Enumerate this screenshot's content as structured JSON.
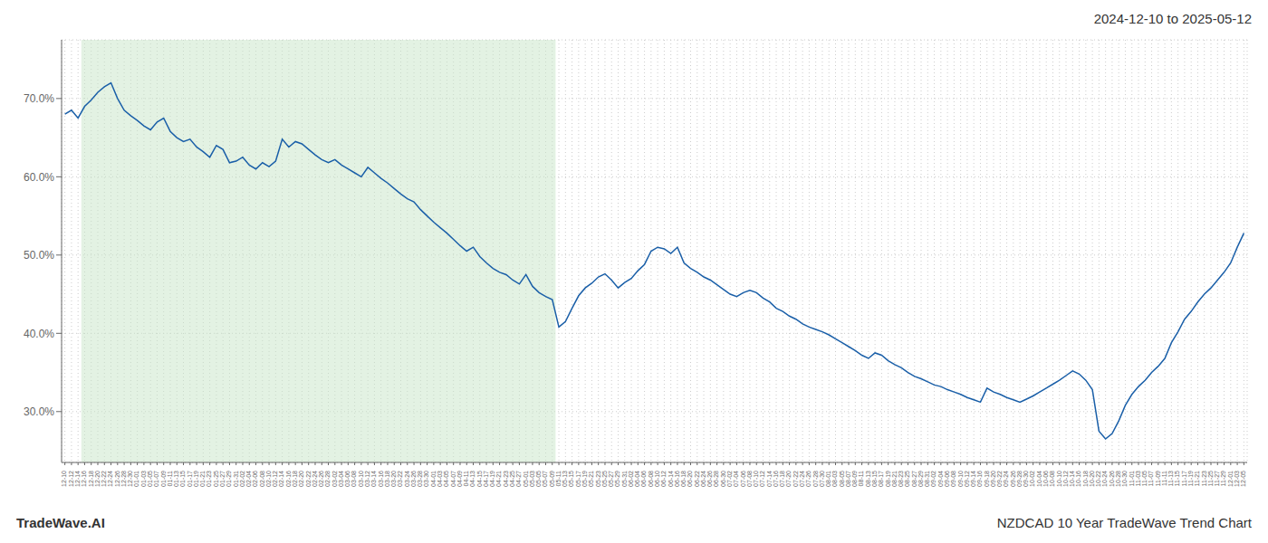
{
  "chart_data": {
    "type": "line",
    "title": "2024-12-10 to 2025-05-12",
    "annotations": [
      "TradeWave.AI",
      "NZDCAD 10 Year TradeWave Trend Chart"
    ],
    "categories": [
      "12-10",
      "12-12",
      "12-14",
      "12-16",
      "12-18",
      "12-20",
      "12-22",
      "12-24",
      "12-26",
      "12-28",
      "12-30",
      "01-01",
      "01-03",
      "01-05",
      "01-07",
      "01-09",
      "01-11",
      "01-13",
      "01-15",
      "01-17",
      "01-19",
      "01-21",
      "01-23",
      "01-25",
      "01-27",
      "01-29",
      "01-31",
      "02-02",
      "02-04",
      "02-06",
      "02-08",
      "02-10",
      "02-12",
      "02-14",
      "02-16",
      "02-18",
      "02-20",
      "02-22",
      "02-24",
      "02-26",
      "02-28",
      "03-02",
      "03-04",
      "03-06",
      "03-08",
      "03-10",
      "03-12",
      "03-14",
      "03-16",
      "03-18",
      "03-20",
      "03-22",
      "03-24",
      "03-26",
      "03-28",
      "03-30",
      "04-01",
      "04-03",
      "04-05",
      "04-07",
      "04-09",
      "04-11",
      "04-13",
      "04-15",
      "04-17",
      "04-19",
      "04-21",
      "04-23",
      "04-25",
      "04-27",
      "05-01",
      "05-03",
      "05-05",
      "05-07",
      "05-09",
      "05-11",
      "05-13",
      "05-15",
      "05-17",
      "05-19",
      "05-21",
      "05-23",
      "05-25",
      "05-27",
      "05-29",
      "05-31",
      "06-02",
      "06-04",
      "06-06",
      "06-08",
      "06-10",
      "06-12",
      "06-14",
      "06-16",
      "06-18",
      "06-20",
      "06-22",
      "06-24",
      "06-26",
      "06-28",
      "06-30",
      "07-02",
      "07-04",
      "07-06",
      "07-08",
      "07-10",
      "07-12",
      "07-14",
      "07-16",
      "07-18",
      "07-20",
      "07-22",
      "07-24",
      "07-26",
      "07-28",
      "07-30",
      "08-01",
      "08-03",
      "08-05",
      "08-07",
      "08-09",
      "08-11",
      "08-13",
      "08-15",
      "08-17",
      "08-19",
      "08-21",
      "08-23",
      "08-25",
      "08-27",
      "08-29",
      "08-31",
      "09-02",
      "09-04",
      "09-06",
      "09-08",
      "09-10",
      "09-12",
      "09-14",
      "09-16",
      "09-18",
      "09-20",
      "09-22",
      "09-24",
      "09-26",
      "09-28",
      "09-30",
      "10-02",
      "10-04",
      "10-06",
      "10-08",
      "10-10",
      "10-12",
      "10-14",
      "10-16",
      "10-18",
      "10-20",
      "10-22",
      "10-24",
      "10-26",
      "10-28",
      "10-30",
      "11-01",
      "11-03",
      "11-05",
      "11-07",
      "11-09",
      "11-11",
      "11-13",
      "11-15",
      "11-17",
      "11-19",
      "11-21",
      "11-23",
      "11-25",
      "11-27",
      "11-29",
      "12-01",
      "12-03",
      "12-05"
    ],
    "values": [
      0.68,
      0.685,
      0.675,
      0.69,
      0.698,
      0.708,
      0.715,
      0.72,
      0.7,
      0.685,
      0.678,
      0.672,
      0.665,
      0.66,
      0.67,
      0.675,
      0.658,
      0.65,
      0.645,
      0.648,
      0.638,
      0.632,
      0.625,
      0.64,
      0.635,
      0.618,
      0.62,
      0.625,
      0.615,
      0.61,
      0.618,
      0.613,
      0.62,
      0.648,
      0.638,
      0.645,
      0.642,
      0.635,
      0.628,
      0.622,
      0.618,
      0.622,
      0.615,
      0.61,
      0.605,
      0.6,
      0.612,
      0.605,
      0.598,
      0.592,
      0.585,
      0.578,
      0.572,
      0.568,
      0.558,
      0.55,
      0.542,
      0.535,
      0.528,
      0.52,
      0.512,
      0.505,
      0.51,
      0.498,
      0.49,
      0.483,
      0.478,
      0.475,
      0.468,
      0.463,
      0.475,
      0.46,
      0.452,
      0.447,
      0.443,
      0.408,
      0.415,
      0.432,
      0.448,
      0.458,
      0.464,
      0.472,
      0.476,
      0.468,
      0.458,
      0.465,
      0.47,
      0.48,
      0.488,
      0.505,
      0.51,
      0.508,
      0.502,
      0.51,
      0.49,
      0.483,
      0.478,
      0.472,
      0.468,
      0.462,
      0.456,
      0.45,
      0.447,
      0.452,
      0.455,
      0.452,
      0.445,
      0.44,
      0.432,
      0.428,
      0.422,
      0.418,
      0.412,
      0.408,
      0.405,
      0.402,
      0.398,
      0.393,
      0.388,
      0.383,
      0.378,
      0.372,
      0.368,
      0.375,
      0.372,
      0.365,
      0.36,
      0.356,
      0.35,
      0.345,
      0.342,
      0.338,
      0.334,
      0.332,
      0.328,
      0.325,
      0.322,
      0.318,
      0.315,
      0.312,
      0.33,
      0.325,
      0.322,
      0.318,
      0.315,
      0.312,
      0.316,
      0.32,
      0.325,
      0.33,
      0.335,
      0.34,
      0.346,
      0.352,
      0.348,
      0.34,
      0.328,
      0.275,
      0.265,
      0.272,
      0.288,
      0.308,
      0.322,
      0.332,
      0.34,
      0.35,
      0.358,
      0.368,
      0.388,
      0.402,
      0.418,
      0.428,
      0.44,
      0.45,
      0.458,
      0.468,
      0.478,
      0.49,
      0.51,
      0.528
    ],
    "color": "#1a5fa8",
    "ylim": [
      0.235,
      0.775
    ],
    "yticks": [
      {
        "value": 0.3,
        "label": "30.0%"
      },
      {
        "value": 0.4,
        "label": "40.0%"
      },
      {
        "value": 0.5,
        "label": "50.0%"
      },
      {
        "value": 0.6,
        "label": "60.0%"
      },
      {
        "value": 0.7,
        "label": "70.0%"
      }
    ],
    "grid": true,
    "shaded_range": {
      "from": "12-16",
      "to": "05-09",
      "color": "#c8e6c8"
    }
  }
}
